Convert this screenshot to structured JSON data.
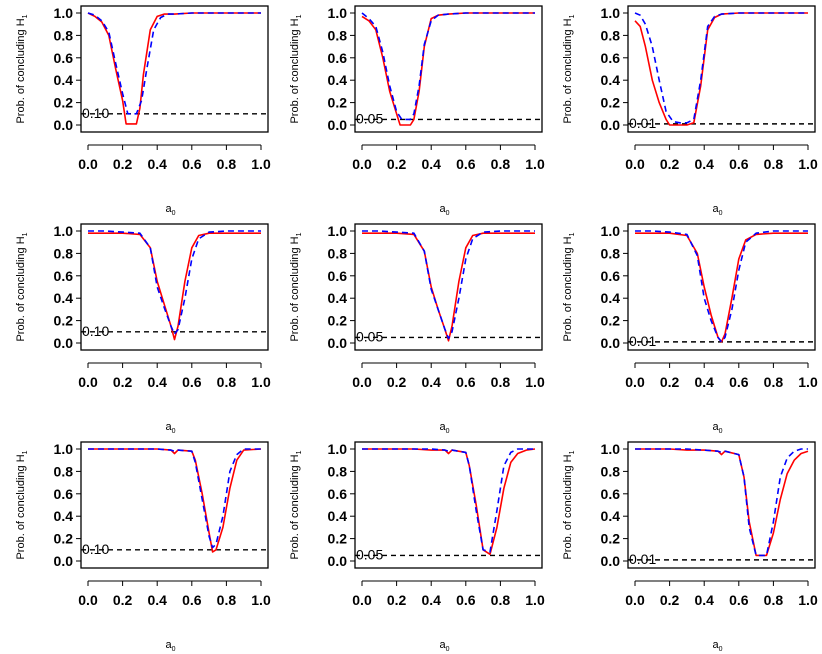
{
  "figure": {
    "ylabel_main": "Prob. of concluding H",
    "ylabel_sub": "1",
    "xlabel_main": "a",
    "xlabel_sub": "0",
    "colors": {
      "series_red": "#ff0000",
      "series_blue": "#0000ff",
      "reference": "#000000",
      "axis": "#000000"
    }
  },
  "chart_data": [
    {
      "type": "line",
      "panel": "row1-col1",
      "xlim": [
        0,
        1
      ],
      "ylim": [
        0,
        1
      ],
      "xticks": [
        "0.0",
        "0.2",
        "0.4",
        "0.6",
        "0.8",
        "1.0"
      ],
      "yticks": [
        "0.0",
        "0.2",
        "0.4",
        "0.6",
        "0.8",
        "1.0"
      ],
      "reference": {
        "y": 0.1,
        "label": "0.10"
      },
      "series": [
        {
          "color": "red",
          "style": "solid",
          "x": [
            0,
            0.04,
            0.08,
            0.12,
            0.16,
            0.2,
            0.22,
            0.26,
            0.28,
            0.3,
            0.32,
            0.36,
            0.4,
            0.44,
            0.5,
            0.6,
            0.7,
            0.8,
            0.9,
            1.0
          ],
          "y": [
            1.0,
            0.97,
            0.92,
            0.8,
            0.5,
            0.22,
            0.01,
            0.01,
            0.01,
            0.15,
            0.45,
            0.85,
            0.97,
            0.99,
            0.99,
            1.0,
            1.0,
            1.0,
            1.0,
            1.0
          ]
        },
        {
          "color": "blue",
          "style": "dashed",
          "x": [
            0,
            0.04,
            0.08,
            0.12,
            0.16,
            0.2,
            0.23,
            0.28,
            0.31,
            0.34,
            0.38,
            0.42,
            0.46,
            0.5,
            0.6,
            0.7,
            0.8,
            0.9,
            1.0
          ],
          "y": [
            1.0,
            0.98,
            0.93,
            0.83,
            0.55,
            0.28,
            0.1,
            0.1,
            0.22,
            0.5,
            0.85,
            0.96,
            0.99,
            0.99,
            1.0,
            1.0,
            1.0,
            1.0,
            1.0
          ]
        }
      ]
    },
    {
      "type": "line",
      "panel": "row1-col2",
      "xlim": [
        0,
        1
      ],
      "ylim": [
        0,
        1
      ],
      "xticks": [
        "0.0",
        "0.2",
        "0.4",
        "0.6",
        "0.8",
        "1.0"
      ],
      "yticks": [
        "0.0",
        "0.2",
        "0.4",
        "0.6",
        "0.8",
        "1.0"
      ],
      "reference": {
        "y": 0.05,
        "label": "0.05"
      },
      "series": [
        {
          "color": "red",
          "style": "solid",
          "x": [
            0,
            0.04,
            0.08,
            0.12,
            0.16,
            0.2,
            0.22,
            0.28,
            0.3,
            0.33,
            0.36,
            0.4,
            0.44,
            0.5,
            0.6,
            0.7,
            0.8,
            0.9,
            1.0
          ],
          "y": [
            0.97,
            0.93,
            0.85,
            0.6,
            0.3,
            0.1,
            0.0,
            0.0,
            0.05,
            0.3,
            0.7,
            0.95,
            0.98,
            0.99,
            1.0,
            1.0,
            1.0,
            1.0,
            1.0
          ]
        },
        {
          "color": "blue",
          "style": "dashed",
          "x": [
            0,
            0.04,
            0.08,
            0.12,
            0.16,
            0.2,
            0.23,
            0.28,
            0.3,
            0.33,
            0.36,
            0.4,
            0.44,
            0.5,
            0.6,
            0.7,
            0.8,
            0.9,
            1.0
          ],
          "y": [
            1.0,
            0.95,
            0.88,
            0.65,
            0.35,
            0.12,
            0.05,
            0.05,
            0.1,
            0.35,
            0.72,
            0.93,
            0.98,
            0.99,
            1.0,
            1.0,
            1.0,
            1.0,
            1.0
          ]
        }
      ]
    },
    {
      "type": "line",
      "panel": "row1-col3",
      "xlim": [
        0,
        1
      ],
      "ylim": [
        0,
        1
      ],
      "xticks": [
        "0.0",
        "0.2",
        "0.4",
        "0.6",
        "0.8",
        "1.0"
      ],
      "yticks": [
        "0.0",
        "0.2",
        "0.4",
        "0.6",
        "0.8",
        "1.0"
      ],
      "reference": {
        "y": 0.01,
        "label": "0.01"
      },
      "series": [
        {
          "color": "red",
          "style": "solid",
          "x": [
            0,
            0.03,
            0.06,
            0.1,
            0.14,
            0.18,
            0.2,
            0.25,
            0.3,
            0.34,
            0.38,
            0.42,
            0.46,
            0.5,
            0.6,
            0.7,
            0.8,
            0.9,
            1.0
          ],
          "y": [
            0.93,
            0.88,
            0.7,
            0.4,
            0.2,
            0.05,
            0.0,
            0.0,
            0.0,
            0.02,
            0.35,
            0.85,
            0.96,
            0.99,
            1.0,
            1.0,
            1.0,
            1.0,
            1.0
          ]
        },
        {
          "color": "blue",
          "style": "dashed",
          "x": [
            0,
            0.03,
            0.06,
            0.1,
            0.14,
            0.18,
            0.22,
            0.26,
            0.3,
            0.34,
            0.38,
            0.42,
            0.46,
            0.5,
            0.6,
            0.7,
            0.8,
            0.9,
            1.0
          ],
          "y": [
            1.0,
            0.98,
            0.9,
            0.7,
            0.4,
            0.12,
            0.03,
            0.02,
            0.02,
            0.05,
            0.4,
            0.88,
            0.97,
            0.99,
            1.0,
            1.0,
            1.0,
            1.0,
            1.0
          ]
        }
      ]
    },
    {
      "type": "line",
      "panel": "row2-col1",
      "xlim": [
        0,
        1
      ],
      "ylim": [
        0,
        1
      ],
      "xticks": [
        "0.0",
        "0.2",
        "0.4",
        "0.6",
        "0.8",
        "1.0"
      ],
      "yticks": [
        "0.0",
        "0.2",
        "0.4",
        "0.6",
        "0.8",
        "1.0"
      ],
      "reference": {
        "y": 0.1,
        "label": "0.10"
      },
      "series": [
        {
          "color": "red",
          "style": "solid",
          "x": [
            0,
            0.1,
            0.2,
            0.3,
            0.36,
            0.4,
            0.44,
            0.48,
            0.5,
            0.52,
            0.56,
            0.6,
            0.64,
            0.7,
            0.8,
            0.9,
            1.0
          ],
          "y": [
            0.98,
            0.98,
            0.98,
            0.97,
            0.85,
            0.55,
            0.35,
            0.15,
            0.03,
            0.15,
            0.55,
            0.85,
            0.96,
            0.98,
            0.98,
            0.98,
            0.98
          ]
        },
        {
          "color": "blue",
          "style": "dashed",
          "x": [
            0,
            0.1,
            0.2,
            0.3,
            0.36,
            0.4,
            0.44,
            0.48,
            0.5,
            0.52,
            0.56,
            0.6,
            0.64,
            0.7,
            0.8,
            0.9,
            1.0
          ],
          "y": [
            1.0,
            1.0,
            0.99,
            0.98,
            0.85,
            0.5,
            0.32,
            0.15,
            0.08,
            0.12,
            0.4,
            0.75,
            0.93,
            0.99,
            1.0,
            1.0,
            1.0
          ]
        }
      ]
    },
    {
      "type": "line",
      "panel": "row2-col2",
      "xlim": [
        0,
        1
      ],
      "ylim": [
        0,
        1
      ],
      "xticks": [
        "0.0",
        "0.2",
        "0.4",
        "0.6",
        "0.8",
        "1.0"
      ],
      "yticks": [
        "0.0",
        "0.2",
        "0.4",
        "0.6",
        "0.8",
        "1.0"
      ],
      "reference": {
        "y": 0.05,
        "label": "0.05"
      },
      "series": [
        {
          "color": "red",
          "style": "solid",
          "x": [
            0,
            0.1,
            0.2,
            0.3,
            0.36,
            0.4,
            0.44,
            0.48,
            0.5,
            0.52,
            0.56,
            0.6,
            0.64,
            0.7,
            0.8,
            0.9,
            1.0
          ],
          "y": [
            0.98,
            0.98,
            0.98,
            0.97,
            0.82,
            0.5,
            0.3,
            0.12,
            0.02,
            0.15,
            0.55,
            0.85,
            0.96,
            0.98,
            0.98,
            0.98,
            0.98
          ]
        },
        {
          "color": "blue",
          "style": "dashed",
          "x": [
            0,
            0.1,
            0.2,
            0.3,
            0.36,
            0.4,
            0.44,
            0.48,
            0.5,
            0.52,
            0.56,
            0.6,
            0.64,
            0.7,
            0.8,
            0.9,
            1.0
          ],
          "y": [
            1.0,
            1.0,
            0.99,
            0.98,
            0.82,
            0.48,
            0.3,
            0.12,
            0.04,
            0.1,
            0.4,
            0.75,
            0.93,
            0.99,
            1.0,
            1.0,
            1.0
          ]
        }
      ]
    },
    {
      "type": "line",
      "panel": "row2-col3",
      "xlim": [
        0,
        1
      ],
      "ylim": [
        0,
        1
      ],
      "xticks": [
        "0.0",
        "0.2",
        "0.4",
        "0.6",
        "0.8",
        "1.0"
      ],
      "yticks": [
        "0.0",
        "0.2",
        "0.4",
        "0.6",
        "0.8",
        "1.0"
      ],
      "reference": {
        "y": 0.01,
        "label": "0.01"
      },
      "series": [
        {
          "color": "red",
          "style": "solid",
          "x": [
            0,
            0.1,
            0.2,
            0.3,
            0.36,
            0.4,
            0.44,
            0.48,
            0.5,
            0.52,
            0.56,
            0.6,
            0.64,
            0.7,
            0.8,
            0.9,
            1.0
          ],
          "y": [
            0.98,
            0.98,
            0.98,
            0.96,
            0.8,
            0.5,
            0.25,
            0.05,
            0.01,
            0.08,
            0.4,
            0.75,
            0.92,
            0.97,
            0.98,
            0.98,
            0.98
          ]
        },
        {
          "color": "blue",
          "style": "dashed",
          "x": [
            0,
            0.1,
            0.2,
            0.3,
            0.36,
            0.4,
            0.44,
            0.48,
            0.5,
            0.52,
            0.56,
            0.6,
            0.64,
            0.7,
            0.8,
            0.9,
            1.0
          ],
          "y": [
            1.0,
            1.0,
            0.99,
            0.97,
            0.78,
            0.4,
            0.2,
            0.05,
            0.01,
            0.05,
            0.3,
            0.65,
            0.9,
            0.98,
            1.0,
            1.0,
            1.0
          ]
        }
      ]
    },
    {
      "type": "line",
      "panel": "row3-col1",
      "xlim": [
        0,
        1
      ],
      "ylim": [
        0,
        1
      ],
      "xticks": [
        "0.0",
        "0.2",
        "0.4",
        "0.6",
        "0.8",
        "1.0"
      ],
      "yticks": [
        "0.0",
        "0.2",
        "0.4",
        "0.6",
        "0.8",
        "1.0"
      ],
      "reference": {
        "y": 0.1,
        "label": "0.10"
      },
      "series": [
        {
          "color": "red",
          "style": "solid",
          "x": [
            0,
            0.1,
            0.2,
            0.3,
            0.4,
            0.48,
            0.5,
            0.52,
            0.6,
            0.62,
            0.66,
            0.7,
            0.72,
            0.74,
            0.78,
            0.82,
            0.86,
            0.9,
            1.0
          ],
          "y": [
            1.0,
            1.0,
            1.0,
            1.0,
            1.0,
            0.99,
            0.96,
            0.99,
            0.98,
            0.9,
            0.6,
            0.25,
            0.08,
            0.1,
            0.3,
            0.65,
            0.9,
            0.99,
            1.0
          ]
        },
        {
          "color": "blue",
          "style": "dashed",
          "x": [
            0,
            0.1,
            0.2,
            0.3,
            0.4,
            0.48,
            0.5,
            0.52,
            0.6,
            0.62,
            0.66,
            0.7,
            0.72,
            0.74,
            0.78,
            0.82,
            0.86,
            0.9,
            1.0
          ],
          "y": [
            1.0,
            1.0,
            1.0,
            1.0,
            1.0,
            0.99,
            0.98,
            0.99,
            0.98,
            0.88,
            0.55,
            0.22,
            0.12,
            0.15,
            0.4,
            0.8,
            0.95,
            1.0,
            1.0
          ]
        }
      ]
    },
    {
      "type": "line",
      "panel": "row3-col2",
      "xlim": [
        0,
        1
      ],
      "ylim": [
        0,
        1
      ],
      "xticks": [
        "0.0",
        "0.2",
        "0.4",
        "0.6",
        "0.8",
        "1.0"
      ],
      "yticks": [
        "0.0",
        "0.2",
        "0.4",
        "0.6",
        "0.8",
        "1.0"
      ],
      "reference": {
        "y": 0.05,
        "label": "0.05"
      },
      "series": [
        {
          "color": "red",
          "style": "solid",
          "x": [
            0,
            0.1,
            0.2,
            0.3,
            0.4,
            0.48,
            0.5,
            0.52,
            0.6,
            0.62,
            0.66,
            0.7,
            0.74,
            0.78,
            0.82,
            0.86,
            0.9,
            0.95,
            1.0
          ],
          "y": [
            1.0,
            1.0,
            1.0,
            1.0,
            0.99,
            0.99,
            0.96,
            0.99,
            0.97,
            0.85,
            0.5,
            0.1,
            0.06,
            0.3,
            0.65,
            0.88,
            0.96,
            0.99,
            1.0
          ]
        },
        {
          "color": "blue",
          "style": "dashed",
          "x": [
            0,
            0.1,
            0.2,
            0.3,
            0.4,
            0.48,
            0.5,
            0.52,
            0.6,
            0.62,
            0.66,
            0.7,
            0.74,
            0.78,
            0.82,
            0.86,
            0.9,
            0.95,
            1.0
          ],
          "y": [
            1.0,
            1.0,
            1.0,
            1.0,
            1.0,
            0.99,
            0.98,
            0.99,
            0.97,
            0.85,
            0.45,
            0.1,
            0.08,
            0.45,
            0.85,
            0.97,
            1.0,
            1.0,
            1.0
          ]
        }
      ]
    },
    {
      "type": "line",
      "panel": "row3-col3",
      "xlim": [
        0,
        1
      ],
      "ylim": [
        0,
        1
      ],
      "xticks": [
        "0.0",
        "0.2",
        "0.4",
        "0.6",
        "0.8",
        "1.0"
      ],
      "yticks": [
        "0.0",
        "0.2",
        "0.4",
        "0.6",
        "0.8",
        "1.0"
      ],
      "reference": {
        "y": 0.01,
        "label": "0.01"
      },
      "series": [
        {
          "color": "red",
          "style": "solid",
          "x": [
            0,
            0.1,
            0.2,
            0.3,
            0.4,
            0.48,
            0.5,
            0.52,
            0.6,
            0.63,
            0.66,
            0.7,
            0.76,
            0.8,
            0.84,
            0.88,
            0.92,
            0.96,
            1.0
          ],
          "y": [
            1.0,
            1.0,
            1.0,
            0.99,
            0.99,
            0.98,
            0.95,
            0.98,
            0.95,
            0.75,
            0.35,
            0.05,
            0.05,
            0.25,
            0.55,
            0.78,
            0.9,
            0.96,
            0.98
          ]
        },
        {
          "color": "blue",
          "style": "dashed",
          "x": [
            0,
            0.1,
            0.2,
            0.3,
            0.4,
            0.48,
            0.5,
            0.52,
            0.6,
            0.63,
            0.66,
            0.7,
            0.76,
            0.8,
            0.84,
            0.88,
            0.92,
            0.96,
            1.0
          ],
          "y": [
            1.0,
            1.0,
            1.0,
            1.0,
            0.99,
            0.98,
            0.97,
            0.98,
            0.95,
            0.75,
            0.3,
            0.05,
            0.05,
            0.35,
            0.75,
            0.92,
            0.98,
            1.0,
            1.0
          ]
        }
      ]
    }
  ]
}
